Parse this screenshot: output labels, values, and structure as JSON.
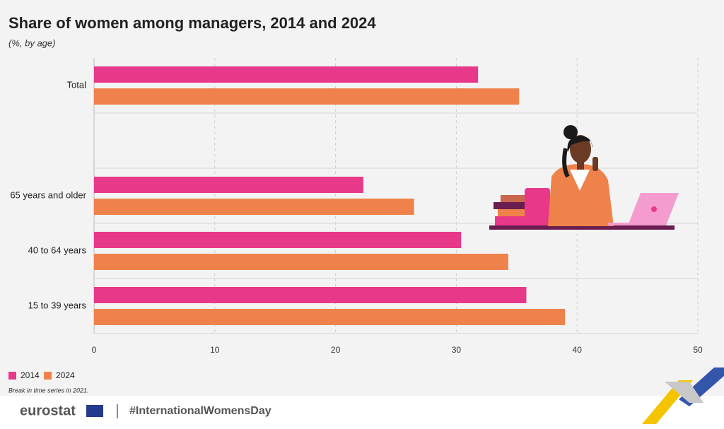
{
  "chart_data": {
    "type": "hbar",
    "title": "Share of women among managers, 2014 and 2024",
    "subtitle": "(%, by age)",
    "categories": [
      "Total",
      null,
      "65 years and older",
      "40 to 64 years",
      "15 to 39 years"
    ],
    "series": [
      {
        "name": "2014",
        "color": "#e8388a",
        "values": [
          31.8,
          null,
          22.3,
          30.4,
          35.8
        ]
      },
      {
        "name": "2024",
        "color": "#ee824a",
        "values": [
          35.2,
          null,
          26.5,
          34.3,
          39.0
        ]
      }
    ],
    "xlim": [
      0,
      50
    ],
    "xticks": [
      0,
      10,
      20,
      30,
      40,
      50
    ],
    "grid": true,
    "legend": "bottom-left",
    "note": "Break in time series in 2021."
  },
  "footer": {
    "logo": "eurostat",
    "hashtag": "#InternationalWomensDay"
  }
}
